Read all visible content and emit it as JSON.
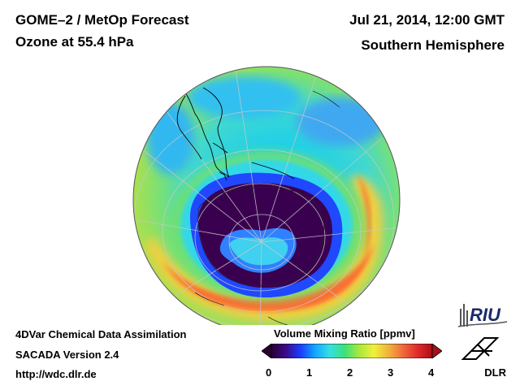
{
  "header": {
    "title": "GOME–2 / MetOp Forecast",
    "subtitle": "Ozone at 55.4 hPa",
    "datetime": "Jul 21, 2014, 12:00 GMT",
    "region": "Southern Hemisphere"
  },
  "footer": {
    "method": "4DVar Chemical Data Assimilation",
    "version": "SACADA Version 2.4",
    "url": "http://wdc.dlr.de"
  },
  "colorbar": {
    "title": "Volume Mixing Ratio [ppmv]",
    "ticks": [
      "0",
      "1",
      "2",
      "3",
      "4"
    ],
    "colors": [
      "#2a0033",
      "#3a0a8a",
      "#1a3cff",
      "#12a8ff",
      "#35e0e0",
      "#3ce07a",
      "#a8e83c",
      "#f0f03c",
      "#f0b43c",
      "#f06a3c",
      "#e02a2a",
      "#a81018"
    ]
  },
  "logos": {
    "riu": "RIU",
    "dlr": "DLR"
  },
  "colors": {
    "hole_core": "#3a0050",
    "hole_ring": "#2040ff",
    "collar": "#30d0e8",
    "mid": "#70e070",
    "high": "#f0e040",
    "max": "#ff5030"
  }
}
